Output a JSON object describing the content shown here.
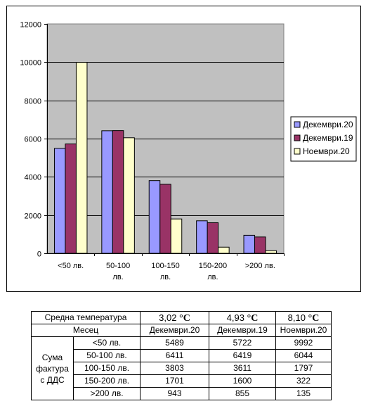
{
  "chart_data": {
    "type": "bar",
    "categories": [
      "<50 лв.",
      "50-100 лв.",
      "100-150 лв.",
      "150-200 лв.",
      ">200 лв."
    ],
    "series": [
      {
        "name": "Декември.20",
        "color": "#9999ff",
        "values": [
          5489,
          6411,
          3803,
          1701,
          943
        ]
      },
      {
        "name": "Декември.19",
        "color": "#993366",
        "values": [
          5722,
          6419,
          3611,
          1600,
          855
        ]
      },
      {
        "name": "Ноември.20",
        "color": "#ffffcc",
        "values": [
          9992,
          6044,
          1797,
          322,
          135
        ]
      }
    ],
    "yticks": [
      "0",
      "2000",
      "4000",
      "6000",
      "8000",
      "10000",
      "12000"
    ],
    "ylim": [
      0,
      12000
    ],
    "plot_background": "#c0c0c0",
    "grid": true,
    "legend_position": "right"
  },
  "table": {
    "temp_label": "Средна температура",
    "temps": [
      {
        "value": "3,02",
        "unit": "°C"
      },
      {
        "value": "4,93",
        "unit": "°C"
      },
      {
        "value": "8,10",
        "unit": "°C"
      }
    ],
    "month_label": "Месец",
    "months": [
      "Декември.20",
      "Декември.19",
      "Ноември.20"
    ],
    "group_label": "Сума фактура с ДДС",
    "rows": [
      {
        "label": "<50 лв.",
        "values": [
          "5489",
          "5722",
          "9992"
        ]
      },
      {
        "label": "50-100 лв.",
        "values": [
          "6411",
          "6419",
          "6044"
        ]
      },
      {
        "label": "100-150 лв.",
        "values": [
          "3803",
          "3611",
          "1797"
        ]
      },
      {
        "label": "150-200 лв.",
        "values": [
          "1701",
          "1600",
          "322"
        ]
      },
      {
        "label": ">200 лв.",
        "values": [
          "943",
          "855",
          "135"
        ]
      }
    ]
  }
}
